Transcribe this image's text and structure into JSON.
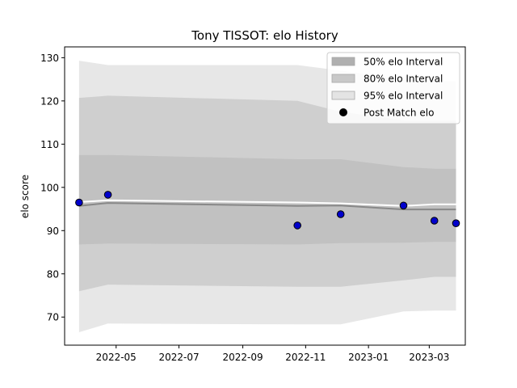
{
  "chart_data": {
    "type": "line",
    "title": "Tony TISSOT: elo History",
    "xlabel": "",
    "ylabel": "elo score",
    "xlim": [
      "2022-03-12",
      "2023-04-05"
    ],
    "ylim": [
      63.5,
      132.5
    ],
    "x_ticks": [
      "2022-05",
      "2022-07",
      "2022-09",
      "2022-11",
      "2023-01",
      "2023-03"
    ],
    "y_ticks": [
      70,
      80,
      90,
      100,
      110,
      120,
      130
    ],
    "grid": false,
    "legend_position": "top-right",
    "bands": [
      {
        "name": "95% elo Interval",
        "color": "#e4e4e4",
        "x": [
          "2022-03-26",
          "2022-04-23",
          "2022-10-24",
          "2022-12-05",
          "2023-02-04",
          "2023-03-06",
          "2023-03-27"
        ],
        "lower": [
          66.5,
          68.5,
          68.3,
          68.3,
          71.3,
          71.5,
          71.5
        ],
        "upper": [
          129.3,
          128.3,
          128.3,
          127.0,
          125.0,
          124.5,
          124.5
        ]
      },
      {
        "name": "80% elo Interval",
        "color": "#cccccc",
        "x": [
          "2022-03-26",
          "2022-04-23",
          "2022-10-24",
          "2022-12-05",
          "2023-02-04",
          "2023-03-06",
          "2023-03-27"
        ],
        "lower": [
          76.0,
          77.5,
          77.0,
          77.0,
          78.5,
          79.3,
          79.3
        ],
        "upper": [
          120.7,
          121.2,
          120.0,
          117.5,
          115.5,
          115.5,
          115.5
        ]
      },
      {
        "name": "50% elo Interval",
        "color": "#bfbfbf",
        "x": [
          "2022-03-26",
          "2022-04-23",
          "2022-10-24",
          "2022-12-05",
          "2023-02-04",
          "2023-03-06",
          "2023-03-27"
        ],
        "lower": [
          86.8,
          87.0,
          86.8,
          87.1,
          87.2,
          87.4,
          87.4
        ],
        "upper": [
          107.5,
          107.5,
          106.5,
          106.5,
          104.7,
          104.3,
          104.3
        ]
      }
    ],
    "series": [
      {
        "name": "",
        "color": "#888888",
        "x": [
          "2022-03-26",
          "2022-04-23",
          "2022-10-24",
          "2022-12-05",
          "2023-02-04",
          "2023-03-06",
          "2023-03-27"
        ],
        "values": [
          95.7,
          96.4,
          95.7,
          95.8,
          94.9,
          94.9,
          94.9
        ]
      },
      {
        "name": "",
        "color": "#ffffff",
        "x": [
          "2022-03-26",
          "2022-04-23",
          "2022-10-24",
          "2022-12-05",
          "2023-02-04",
          "2023-03-06",
          "2023-03-27"
        ],
        "values": [
          96.6,
          97.0,
          96.5,
          96.3,
          95.7,
          96.1,
          96.1
        ]
      }
    ],
    "points": {
      "name": "Post Match elo",
      "color": "#0000cc",
      "x": [
        "2022-03-26",
        "2022-04-23",
        "2022-10-24",
        "2022-12-05",
        "2023-02-04",
        "2023-03-06",
        "2023-03-27"
      ],
      "values": [
        96.5,
        98.3,
        91.2,
        93.8,
        95.8,
        92.3,
        91.7
      ]
    },
    "legend": [
      {
        "label": "50% elo Interval",
        "kind": "patch",
        "color": "#b0b0b0"
      },
      {
        "label": "80% elo Interval",
        "kind": "patch",
        "color": "#c8c8c8"
      },
      {
        "label": "95% elo Interval",
        "kind": "patch",
        "color": "#e4e4e4"
      },
      {
        "label": "Post Match elo",
        "kind": "marker",
        "color": "#000000"
      }
    ]
  }
}
